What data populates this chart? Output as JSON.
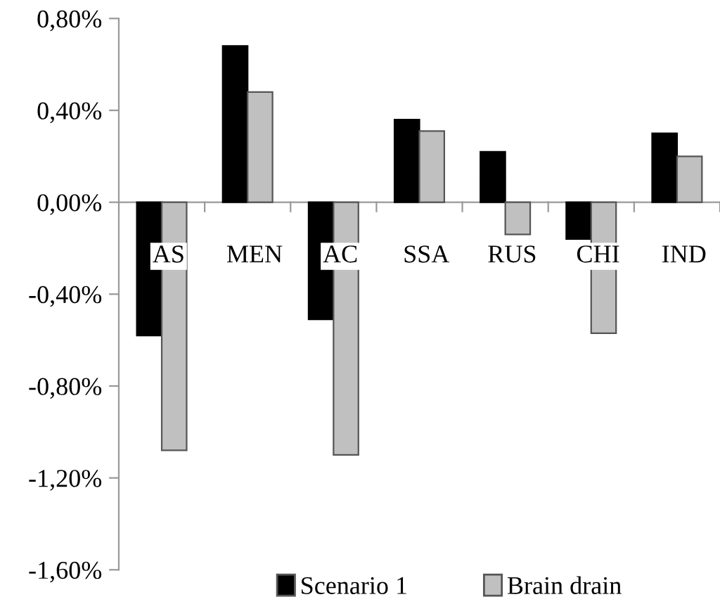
{
  "chart_data": {
    "type": "bar",
    "categories": [
      "AS",
      "MEN",
      "AC",
      "SSA",
      "RUS",
      "CHI",
      "IND"
    ],
    "series": [
      {
        "name": "Scenario 1",
        "color": "#000000",
        "values": [
          -0.58,
          0.68,
          -0.51,
          0.36,
          0.22,
          -0.16,
          0.3
        ]
      },
      {
        "name": "Brain drain",
        "color": "#c0c0c0",
        "values": [
          -1.08,
          0.48,
          -1.1,
          0.31,
          -0.14,
          -0.57,
          0.2
        ]
      }
    ],
    "ylim": [
      -1.6,
      0.8
    ],
    "yticks": [
      {
        "value": -1.6,
        "label": "-1,60%"
      },
      {
        "value": -1.2,
        "label": "-1,20%"
      },
      {
        "value": -0.8,
        "label": "-0,80%"
      },
      {
        "value": -0.4,
        "label": "-0,40%"
      },
      {
        "value": 0,
        "label": "0,00%"
      },
      {
        "value": 0.4,
        "label": "0,40%"
      },
      {
        "value": 0.8,
        "label": "0,80%"
      }
    ],
    "grid": false,
    "legend": "bottom"
  }
}
